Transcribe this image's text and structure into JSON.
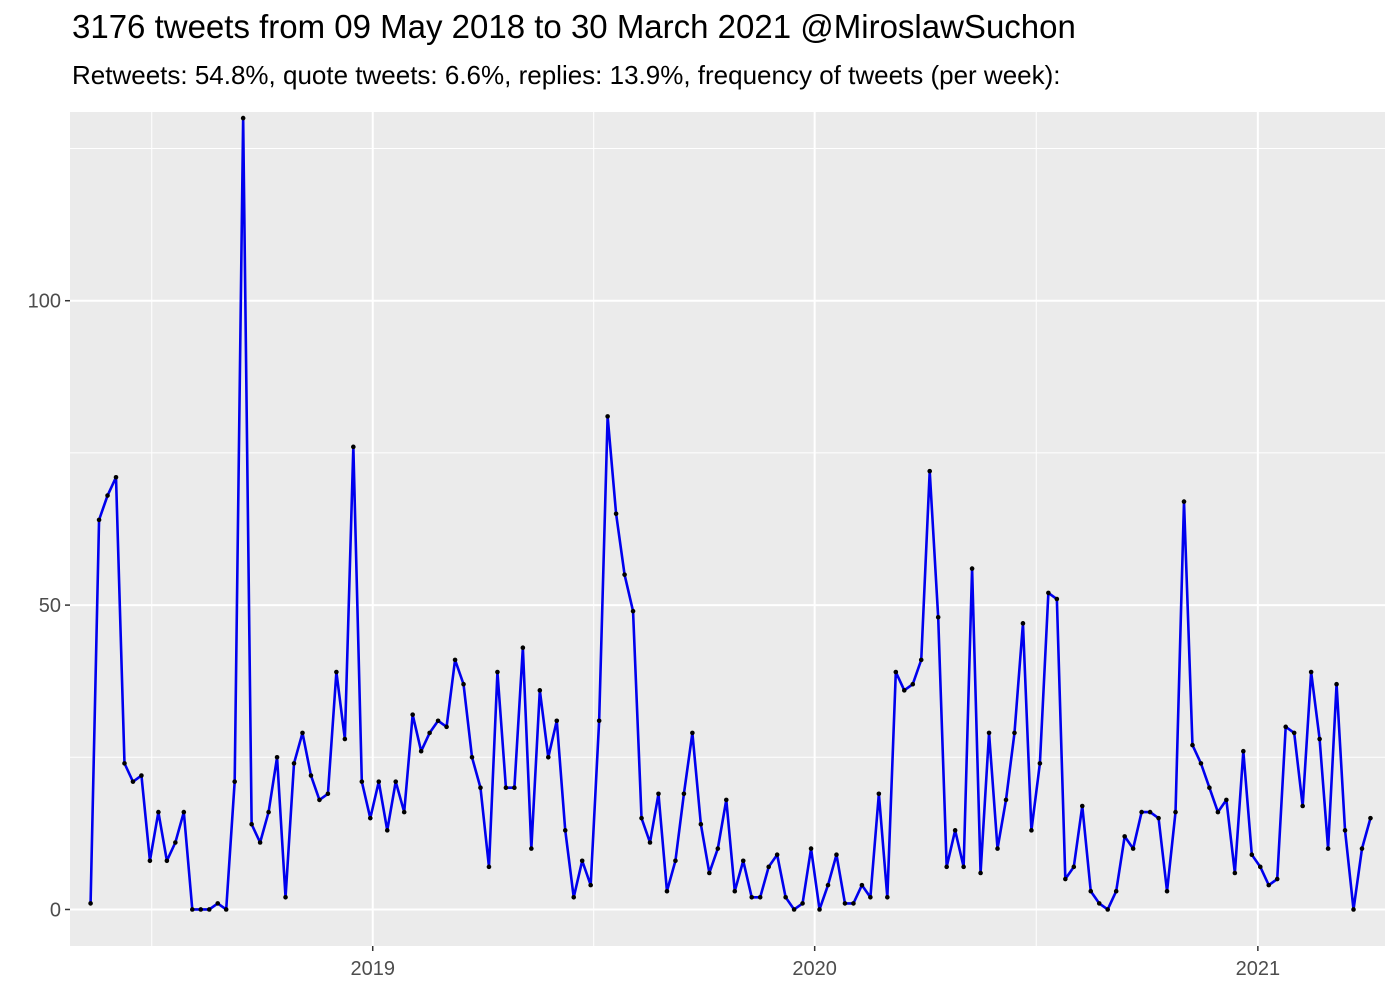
{
  "chart_data": {
    "type": "line",
    "title": "3176 tweets from 09 May 2018 to 30 March 2021 @MiroslawSuchon",
    "subtitle": "Retweets: 54.8%, quote tweets: 6.6%, replies: 13.9%, frequency of tweets (per week):",
    "xlabel": "",
    "ylabel": "",
    "x_start": "2018-05-13",
    "x_step_days": 7,
    "xlim": [
      "2018-04-26",
      "2021-04-16"
    ],
    "ylim": [
      -6,
      131
    ],
    "x_ticks": [
      {
        "label": "2019",
        "date": "2019-01-01"
      },
      {
        "label": "2020",
        "date": "2020-01-01"
      },
      {
        "label": "2021",
        "date": "2021-01-01"
      }
    ],
    "y_ticks": [
      0,
      50,
      100
    ],
    "grid": true,
    "series": [
      {
        "color": "#0000ee",
        "point_color": "#000000",
        "values": [
          1,
          64,
          68,
          71,
          24,
          21,
          22,
          8,
          16,
          8,
          11,
          16,
          0,
          0,
          0,
          1,
          0,
          21,
          130,
          14,
          11,
          16,
          25,
          2,
          24,
          29,
          22,
          18,
          19,
          39,
          28,
          76,
          21,
          15,
          21,
          13,
          21,
          16,
          32,
          26,
          29,
          31,
          30,
          41,
          37,
          25,
          20,
          7,
          39,
          20,
          20,
          43,
          10,
          36,
          25,
          31,
          13,
          2,
          8,
          4,
          31,
          81,
          65,
          55,
          49,
          15,
          11,
          19,
          3,
          8,
          19,
          29,
          14,
          6,
          10,
          18,
          3,
          8,
          2,
          2,
          7,
          9,
          2,
          0,
          1,
          10,
          0,
          4,
          9,
          1,
          1,
          4,
          2,
          19,
          2,
          39,
          36,
          37,
          41,
          72,
          48,
          7,
          13,
          7,
          56,
          6,
          29,
          10,
          18,
          29,
          47,
          13,
          24,
          52,
          51,
          5,
          7,
          17,
          3,
          1,
          0,
          3,
          12,
          10,
          16,
          16,
          15,
          3,
          16,
          67,
          27,
          24,
          20,
          16,
          18,
          6,
          26,
          9,
          7,
          4,
          5,
          30,
          29,
          17,
          39,
          28,
          10,
          37,
          13,
          0,
          10,
          15
        ]
      }
    ]
  }
}
